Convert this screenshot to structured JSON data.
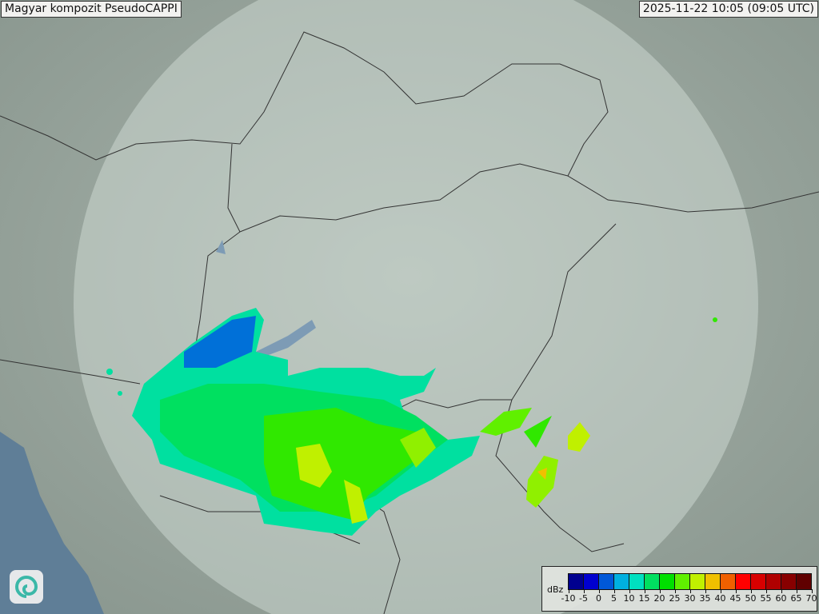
{
  "header": {
    "title": "Magyar kompozit  PseudoCAPPI",
    "timestamp": "2025-11-22 10:05 (09:05 UTC)"
  },
  "logo": {
    "icon": "swirl-logo-icon"
  },
  "legend": {
    "unit": "dBz",
    "ticks": [
      "-10",
      "-5",
      "0",
      "5",
      "10",
      "15",
      "20",
      "25",
      "30",
      "35",
      "40",
      "45",
      "50",
      "55",
      "60",
      "65",
      "70"
    ],
    "colors": [
      "#00008f",
      "#0000d0",
      "#0058d8",
      "#00b0e0",
      "#00e0c0",
      "#00e060",
      "#00e000",
      "#60f000",
      "#c0f000",
      "#f0c000",
      "#f06000",
      "#ff0000",
      "#d80000",
      "#b00000",
      "#880000",
      "#600000"
    ]
  }
}
